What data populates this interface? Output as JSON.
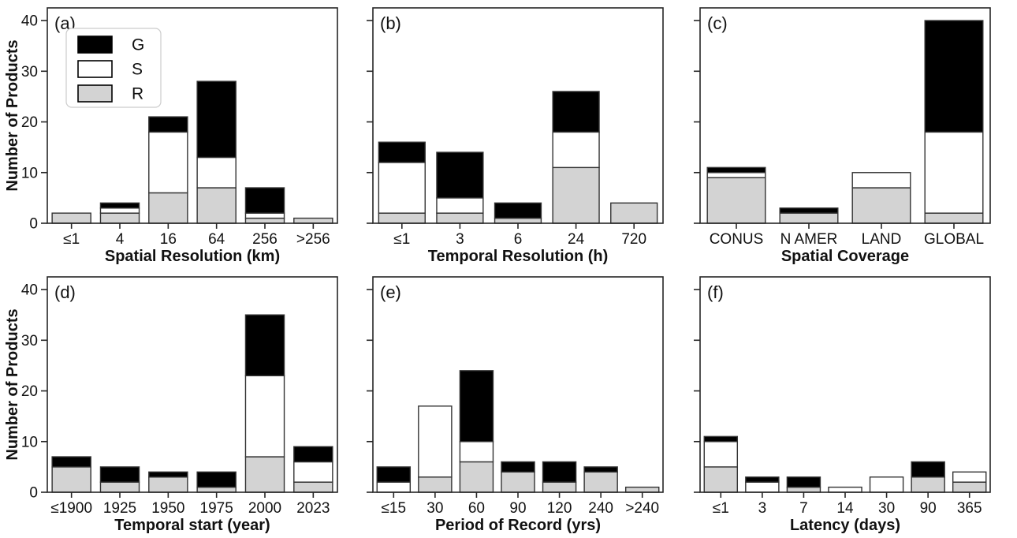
{
  "figure": {
    "ylabel": "Number of Products",
    "yticks": [
      0,
      10,
      20,
      30,
      40
    ],
    "ylim": [
      0,
      40
    ],
    "colors": {
      "G": "#000000",
      "S": "#ffffff",
      "R": "#d3d3d3",
      "bar_edge": "#333333",
      "axis": "#262626",
      "text": "#111111",
      "legend_border": "#cccccc"
    },
    "legend": {
      "entries": [
        {
          "label": "G",
          "color": "#000000"
        },
        {
          "label": "S",
          "color": "#ffffff"
        },
        {
          "label": "R",
          "color": "#d3d3d3"
        }
      ]
    }
  },
  "chart_data": [
    {
      "type": "bar",
      "stacked": true,
      "panel_label": "(a)",
      "xlabel": "Spatial Resolution (km)",
      "ylabel": "Number of Products",
      "show_ytick_labels": true,
      "show_legend": true,
      "ylim": [
        0,
        40
      ],
      "yticks": [
        0,
        10,
        20,
        30,
        40
      ],
      "categories": [
        "≤1",
        "4",
        "16",
        "64",
        "256",
        ">256"
      ],
      "series": [
        {
          "name": "R",
          "color": "#d3d3d3",
          "values": [
            2,
            2,
            6,
            7,
            1,
            1
          ]
        },
        {
          "name": "S",
          "color": "#ffffff",
          "values": [
            0,
            1,
            12,
            6,
            1,
            0
          ]
        },
        {
          "name": "G",
          "color": "#000000",
          "values": [
            0,
            1,
            3,
            15,
            5,
            0
          ]
        }
      ]
    },
    {
      "type": "bar",
      "stacked": true,
      "panel_label": "(b)",
      "xlabel": "Temporal Resolution (h)",
      "ylabel": "",
      "show_ytick_labels": false,
      "show_legend": false,
      "ylim": [
        0,
        40
      ],
      "yticks": [
        0,
        10,
        20,
        30,
        40
      ],
      "categories": [
        "≤1",
        "3",
        "6",
        "24",
        "720"
      ],
      "series": [
        {
          "name": "R",
          "color": "#d3d3d3",
          "values": [
            2,
            2,
            1,
            11,
            4
          ]
        },
        {
          "name": "S",
          "color": "#ffffff",
          "values": [
            10,
            3,
            0,
            7,
            0
          ]
        },
        {
          "name": "G",
          "color": "#000000",
          "values": [
            4,
            9,
            3,
            8,
            0
          ]
        }
      ]
    },
    {
      "type": "bar",
      "stacked": true,
      "panel_label": "(c)",
      "xlabel": "Spatial Coverage",
      "ylabel": "",
      "show_ytick_labels": false,
      "show_legend": false,
      "ylim": [
        0,
        40
      ],
      "yticks": [
        0,
        10,
        20,
        30,
        40
      ],
      "categories": [
        "CONUS",
        "N AMER",
        "LAND",
        "GLOBAL"
      ],
      "series": [
        {
          "name": "R",
          "color": "#d3d3d3",
          "values": [
            9,
            2,
            7,
            2
          ]
        },
        {
          "name": "S",
          "color": "#ffffff",
          "values": [
            1,
            0,
            3,
            16
          ]
        },
        {
          "name": "G",
          "color": "#000000",
          "values": [
            1,
            1,
            0,
            22
          ]
        }
      ]
    },
    {
      "type": "bar",
      "stacked": true,
      "panel_label": "(d)",
      "xlabel": "Temporal start (year)",
      "ylabel": "Number of Products",
      "show_ytick_labels": true,
      "show_legend": false,
      "ylim": [
        0,
        40
      ],
      "yticks": [
        0,
        10,
        20,
        30,
        40
      ],
      "categories": [
        "≤1900",
        "1925",
        "1950",
        "1975",
        "2000",
        "2023"
      ],
      "series": [
        {
          "name": "R",
          "color": "#d3d3d3",
          "values": [
            5,
            2,
            3,
            1,
            7,
            2
          ]
        },
        {
          "name": "S",
          "color": "#ffffff",
          "values": [
            0,
            0,
            0,
            0,
            16,
            4
          ]
        },
        {
          "name": "G",
          "color": "#000000",
          "values": [
            2,
            3,
            1,
            3,
            12,
            3
          ]
        }
      ]
    },
    {
      "type": "bar",
      "stacked": true,
      "panel_label": "(e)",
      "xlabel": "Period of Record (yrs)",
      "ylabel": "",
      "show_ytick_labels": false,
      "show_legend": false,
      "ylim": [
        0,
        40
      ],
      "yticks": [
        0,
        10,
        20,
        30,
        40
      ],
      "categories": [
        "≤15",
        "30",
        "60",
        "90",
        "120",
        "240",
        ">240"
      ],
      "series": [
        {
          "name": "R",
          "color": "#d3d3d3",
          "values": [
            0,
            3,
            6,
            4,
            2,
            4,
            1
          ]
        },
        {
          "name": "S",
          "color": "#ffffff",
          "values": [
            2,
            14,
            4,
            0,
            0,
            0,
            0
          ]
        },
        {
          "name": "G",
          "color": "#000000",
          "values": [
            3,
            0,
            14,
            2,
            4,
            1,
            0
          ]
        }
      ]
    },
    {
      "type": "bar",
      "stacked": true,
      "panel_label": "(f)",
      "xlabel": "Latency (days)",
      "ylabel": "",
      "show_ytick_labels": false,
      "show_legend": false,
      "ylim": [
        0,
        40
      ],
      "yticks": [
        0,
        10,
        20,
        30,
        40
      ],
      "categories": [
        "≤1",
        "3",
        "7",
        "14",
        "30",
        "90",
        "365"
      ],
      "series": [
        {
          "name": "R",
          "color": "#d3d3d3",
          "values": [
            5,
            0,
            1,
            0,
            0,
            3,
            2
          ]
        },
        {
          "name": "S",
          "color": "#ffffff",
          "values": [
            5,
            2,
            0,
            1,
            3,
            0,
            2
          ]
        },
        {
          "name": "G",
          "color": "#000000",
          "values": [
            1,
            1,
            2,
            0,
            0,
            3,
            0
          ]
        }
      ]
    }
  ]
}
